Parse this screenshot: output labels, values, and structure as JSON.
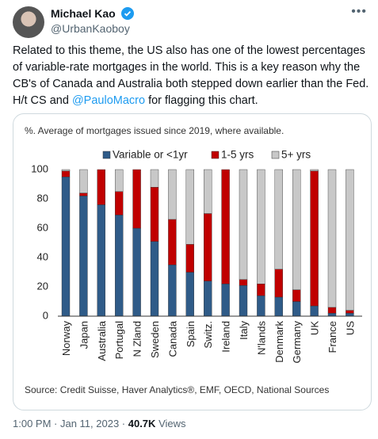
{
  "author": {
    "name": "Michael Kao",
    "handle": "@UrbanKaoboy"
  },
  "body": {
    "text_before": "Related to this theme, the US also has one of the lowest percentages of variable-rate mortgages in the world. This is a key reason why the CB's of Canada and Australia both stepped down earlier than the Fed. H/t CS and ",
    "mention": "@PauloMacro",
    "text_after": " for flagging this chart."
  },
  "footer": {
    "time": "1:00 PM · Jan 11, 2023 · ",
    "views_count": "40.7K",
    "views_label": "Views"
  },
  "chart_data": {
    "type": "stacked_bar",
    "title": "%. Average of mortgages issued since 2019, where available.",
    "source": "Source: Credit Suisse, Haver Analytics®, EMF, OECD, National Sources",
    "categories": [
      "Norway",
      "Japan",
      "Australia",
      "Portugal",
      "N Zland",
      "Sweden",
      "Canada",
      "Spain",
      "Switz.",
      "Ireland",
      "Italy",
      "N'lands",
      "Denmark",
      "Germany",
      "UK",
      "France",
      "US"
    ],
    "series": [
      {
        "name": "Variable or <1yr",
        "color": "#2f5b88",
        "values": [
          95,
          82,
          76,
          69,
          60,
          51,
          35,
          30,
          24,
          22,
          21,
          14,
          13,
          10,
          7,
          2,
          2
        ]
      },
      {
        "name": "1-5 yrs",
        "color": "#c00000",
        "values": [
          4,
          2,
          24,
          16,
          40,
          37,
          31,
          19,
          46,
          78,
          4,
          8,
          19,
          8,
          92,
          4,
          2
        ]
      },
      {
        "name": "5+ yrs",
        "color": "#c8c8c8",
        "values": [
          1,
          16,
          0,
          15,
          0,
          12,
          34,
          51,
          30,
          0,
          75,
          78,
          68,
          82,
          1,
          94,
          96
        ]
      }
    ],
    "ylim": [
      0,
      100
    ],
    "yticks": [
      0,
      20,
      40,
      60,
      80,
      100
    ],
    "grid": false,
    "legend": "top"
  }
}
